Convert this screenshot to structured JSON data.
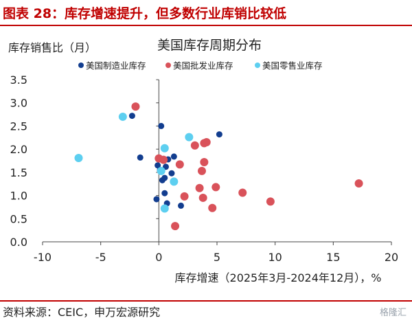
{
  "header": {
    "title": "图表 28：库存增速提升，但多数行业库销比较低"
  },
  "footer": {
    "source": "资料来源：CEIC，申万宏源研究"
  },
  "watermark": {
    "text": "格隆汇"
  },
  "colors": {
    "brand_red": "#c00000",
    "manufacturing": "#123d8f",
    "wholesale": "#d9525a",
    "retail": "#5dcff0"
  },
  "chart_data": {
    "type": "scatter",
    "title": "美国库存周期分布",
    "ylabel": "库存销售比（月）",
    "xlabel": "库存增速（2025年3月-2024年12月），%",
    "xlim": [
      -10,
      20
    ],
    "ylim": [
      0.0,
      3.5
    ],
    "xticks": [
      -10,
      -5,
      0,
      5,
      10,
      15,
      20
    ],
    "yticks": [
      0.0,
      0.5,
      1.0,
      1.5,
      2.0,
      2.5,
      3.0,
      3.5
    ],
    "xtick_labels": [
      "-10",
      "-5",
      "0",
      "5",
      "10",
      "15",
      "20"
    ],
    "ytick_labels": [
      "0.0",
      "0.5",
      "1.0",
      "1.5",
      "2.0",
      "2.5",
      "3.0",
      "3.5"
    ],
    "legend_position": "top",
    "series": [
      {
        "name": "美国制造业库存",
        "color": "#123d8f",
        "points": [
          [
            -2.3,
            2.72
          ],
          [
            0.2,
            2.5
          ],
          [
            5.2,
            2.32
          ],
          [
            -1.6,
            1.82
          ],
          [
            1.3,
            1.84
          ],
          [
            0.8,
            1.78
          ],
          [
            -0.1,
            1.65
          ],
          [
            0.6,
            1.62
          ],
          [
            0.1,
            1.55
          ],
          [
            1.1,
            1.48
          ],
          [
            0.3,
            1.33
          ],
          [
            0.5,
            1.38
          ],
          [
            0.5,
            1.05
          ],
          [
            -0.2,
            0.92
          ],
          [
            0.7,
            0.83
          ],
          [
            1.9,
            0.78
          ]
        ]
      },
      {
        "name": "美国批发业库存",
        "color": "#d9525a",
        "points": [
          [
            -2.0,
            2.92
          ],
          [
            3.9,
            2.13
          ],
          [
            4.1,
            2.15
          ],
          [
            3.1,
            2.08
          ],
          [
            0.0,
            1.8
          ],
          [
            0.4,
            1.77
          ],
          [
            1.8,
            1.67
          ],
          [
            3.9,
            1.72
          ],
          [
            3.7,
            1.53
          ],
          [
            4.9,
            1.18
          ],
          [
            3.5,
            1.16
          ],
          [
            7.2,
            1.06
          ],
          [
            2.2,
            0.98
          ],
          [
            3.8,
            0.95
          ],
          [
            9.6,
            0.87
          ],
          [
            4.6,
            0.73
          ],
          [
            1.4,
            0.34
          ],
          [
            17.2,
            1.26
          ]
        ]
      },
      {
        "name": "美国零售业库存",
        "color": "#5dcff0",
        "points": [
          [
            -3.1,
            2.7
          ],
          [
            2.6,
            2.26
          ],
          [
            0.5,
            2.02
          ],
          [
            -6.9,
            1.81
          ],
          [
            0.2,
            1.53
          ],
          [
            1.3,
            1.3
          ],
          [
            0.5,
            0.72
          ]
        ]
      }
    ]
  }
}
